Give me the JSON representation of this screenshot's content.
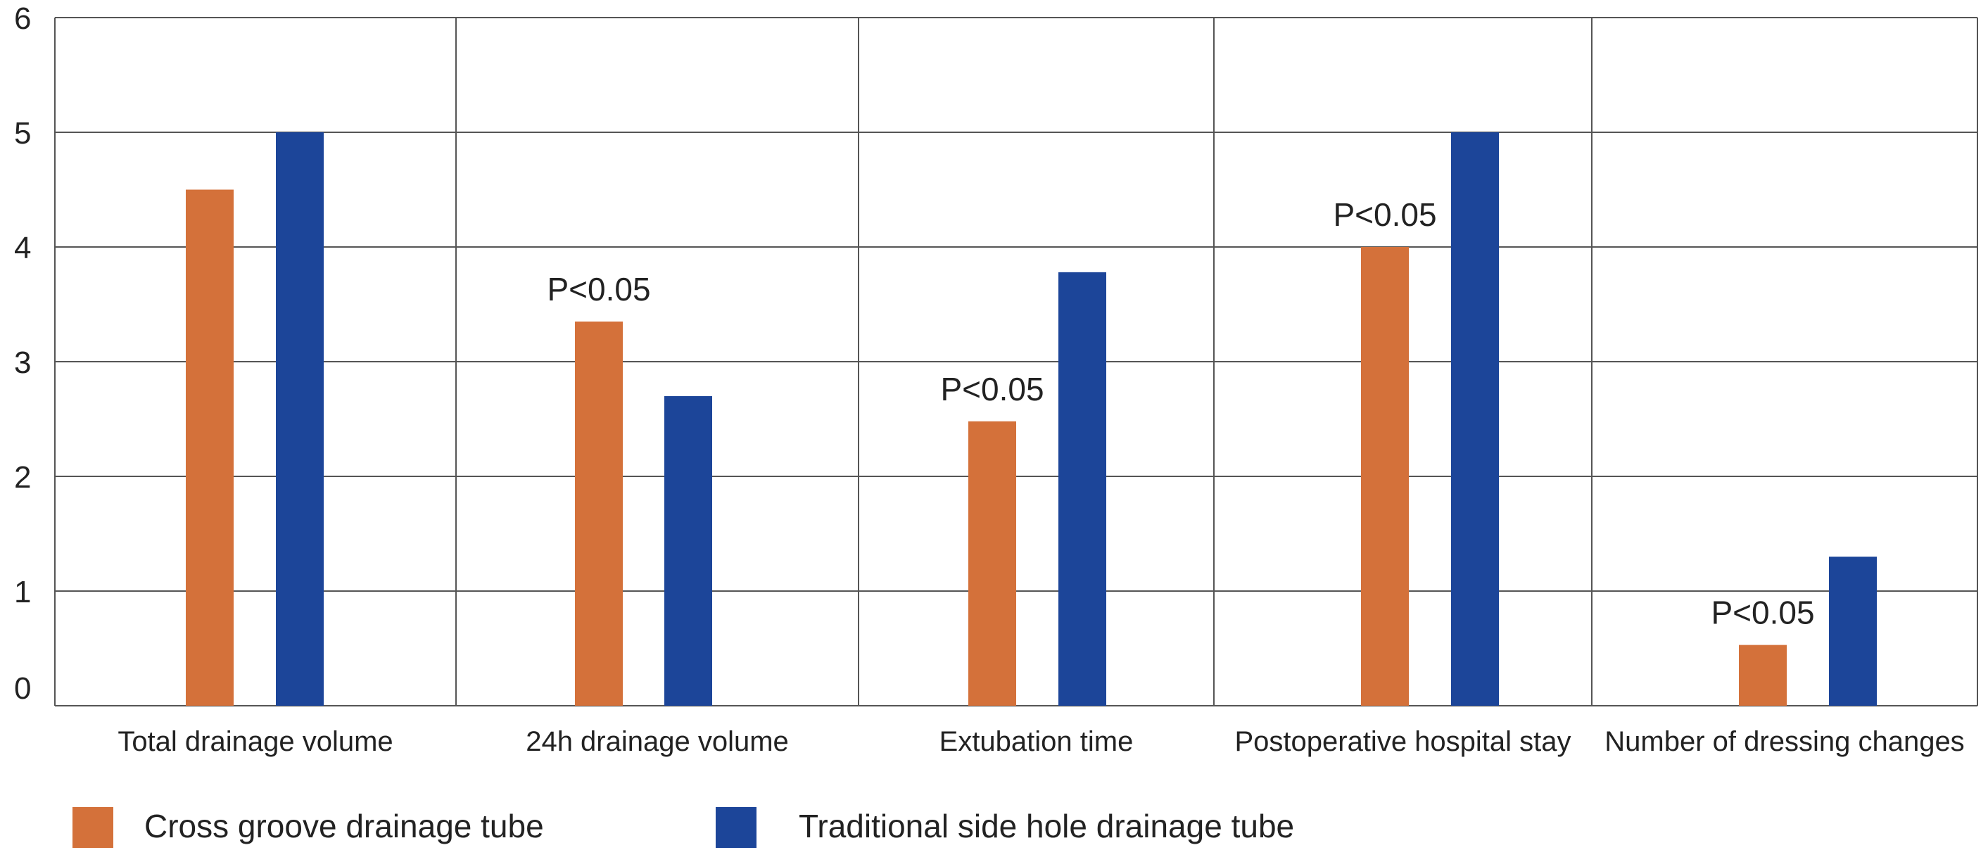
{
  "chart_data": {
    "type": "bar",
    "title": "",
    "xlabel": "",
    "ylabel": "",
    "ylim": [
      0,
      6
    ],
    "yticks": [
      0,
      1,
      2,
      3,
      4,
      5,
      6
    ],
    "grid": true,
    "legend_position": "bottom-left",
    "categories": [
      "Total drainage volume",
      "24h drainage volume",
      "Extubation time",
      "Postoperative hospital stay",
      "Number of dressing changes"
    ],
    "series": [
      {
        "name": "Cross groove drainage tube",
        "color": "#D4713A",
        "values": [
          4.5,
          3.35,
          2.48,
          4.0,
          0.53
        ]
      },
      {
        "name": "Traditional side hole drainage tube",
        "color": "#1C4599",
        "values": [
          5.0,
          2.7,
          3.78,
          5.0,
          1.3
        ]
      }
    ],
    "annotations": [
      {
        "category_index": 1,
        "text": "P<0.05"
      },
      {
        "category_index": 2,
        "text": "P<0.05"
      },
      {
        "category_index": 3,
        "text": "P<0.05"
      },
      {
        "category_index": 4,
        "text": "P<0.05"
      }
    ]
  }
}
